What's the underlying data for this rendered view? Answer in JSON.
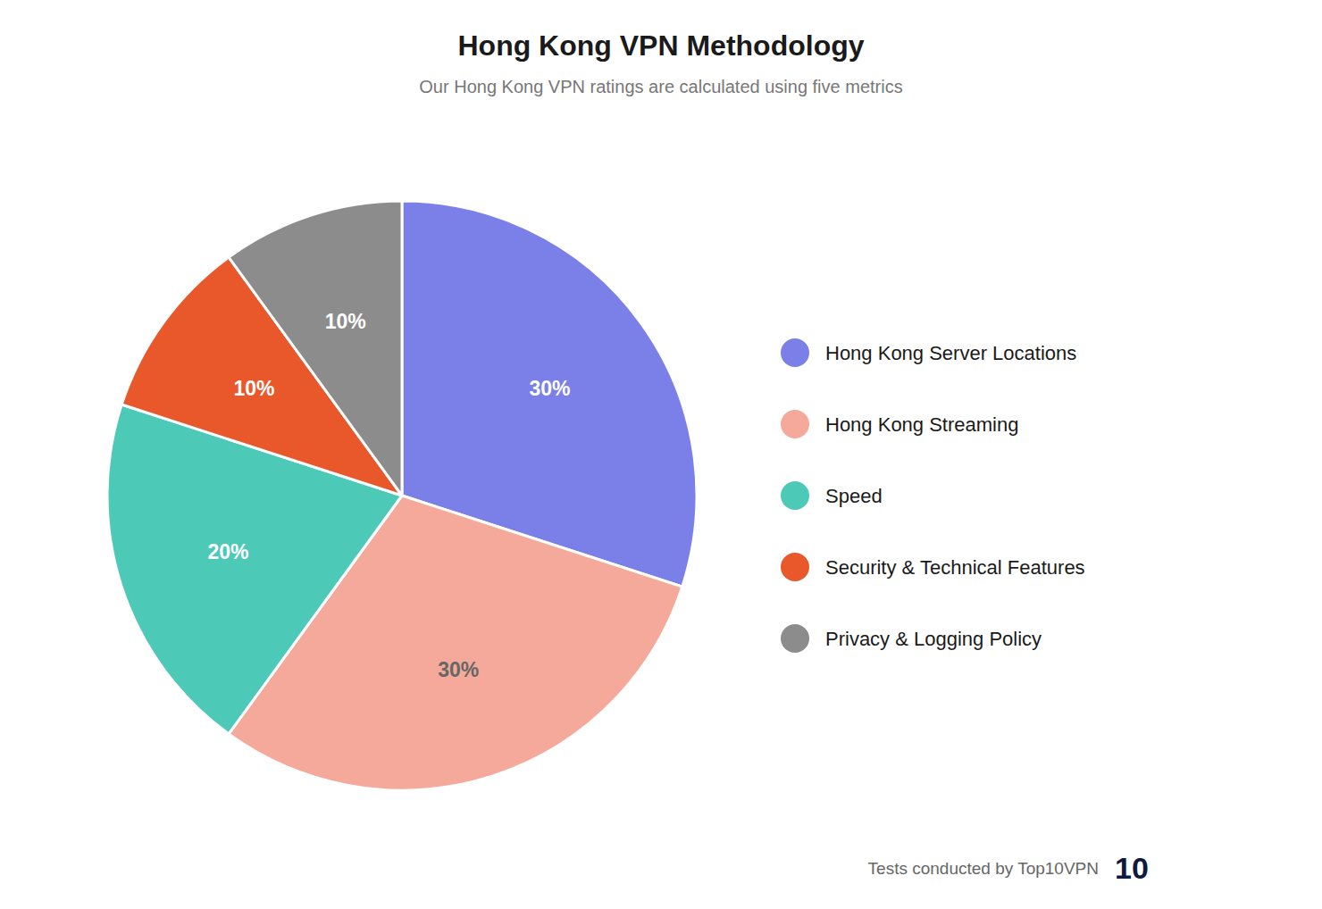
{
  "chart_data": {
    "type": "pie",
    "title": "Hong Kong VPN Methodology",
    "subtitle": "Our Hong Kong VPN ratings are calculated using five metrics",
    "categories": [
      "Hong Kong Server Locations",
      "Hong Kong Streaming",
      "Speed",
      "Security & Technical Features",
      "Privacy & Logging Policy"
    ],
    "values": [
      30,
      30,
      20,
      10,
      10
    ],
    "value_labels": [
      "30%",
      "30%",
      "20%",
      "10%",
      "10%"
    ],
    "colors": [
      "#7B7FE8",
      "#F4A99A",
      "#4DC9B8",
      "#E8582A",
      "#8C8C8C"
    ],
    "data_labels": true,
    "legend": "right",
    "annotations": [
      "Tests conducted by Top10VPN",
      "10"
    ]
  }
}
